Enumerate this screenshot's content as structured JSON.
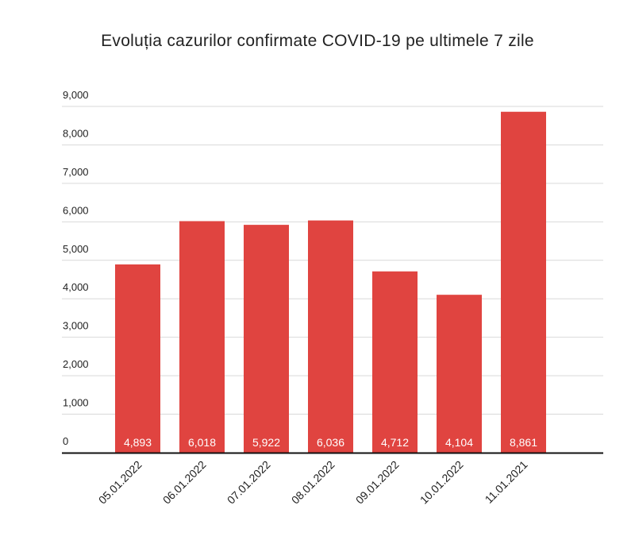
{
  "chart_data": {
    "type": "bar",
    "title": "Evoluția cazurilor confirmate COVID-19 pe ultimele 7 zile",
    "categories": [
      "05.01.2022",
      "06.01.2022",
      "07.01.2022",
      "08.01.2022",
      "09.01.2022",
      "10.01.2022",
      "11.01.2021"
    ],
    "values": [
      4893,
      6018,
      5922,
      6036,
      4712,
      4104,
      8861
    ],
    "data_labels": [
      "4,893",
      "6,018",
      "5,922",
      "6,036",
      "4,712",
      "4,104",
      "8,861"
    ],
    "yticks": [
      0,
      1000,
      2000,
      3000,
      4000,
      5000,
      6000,
      7000,
      8000,
      9000
    ],
    "ytick_labels": [
      "0",
      "1,000",
      "2,000",
      "3,000",
      "4,000",
      "5,000",
      "6,000",
      "7,000",
      "8,000",
      "9,000"
    ],
    "ylim": [
      0,
      9000
    ],
    "grid": true,
    "legend": "none",
    "colors": {
      "bar": "#e04440",
      "grid": "#d9d9d9",
      "axis": "#111111"
    }
  }
}
